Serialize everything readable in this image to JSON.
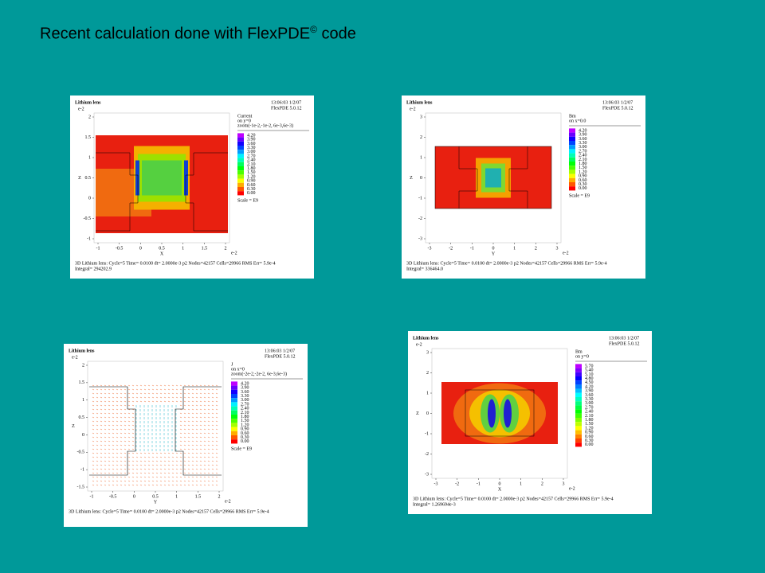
{
  "title": {
    "text": "Recent calculation done with FlexPDE",
    "sup": "©",
    "tail": " code"
  },
  "panels": [
    {
      "header": "Lithium lens",
      "exp": "e-2",
      "date": "13:06:03 1/2/07",
      "version": "FlexPDE 5.0.12",
      "quantity": "Current",
      "on": "on y=0",
      "zoom": "zoom(-1e-2,-1e-2, 6e-3,6e-3)",
      "legend": [
        "4.20",
        "3.90",
        "3.60",
        "3.30",
        "3.00",
        "2.70",
        "2.40",
        "2.10",
        "1.80",
        "1.50",
        "1.20",
        "0.90",
        "0.60",
        "0.30",
        "0.00"
      ],
      "scale": "Scale = E9",
      "xlabel": "X",
      "ylabel": "Z",
      "xticks": [
        "-1",
        "-0.5",
        "0",
        "0.5",
        "1",
        "1.5",
        "2"
      ],
      "yticks": [
        "2",
        "1.5",
        "1",
        "0.5",
        "0",
        "-0.5",
        "-1"
      ],
      "xexp": "e-2",
      "footer": "3D Lithium lens:  Cycle=5  Time= 0.0100  dt= 2.0000e-3  p2  Nodes=42157 Cells=29966 RMS Err= 5.9e-4",
      "integral": "Integral=  294202.9"
    },
    {
      "header": "Lithium lens",
      "exp": "e-2",
      "date": "13:06:03 1/2/07",
      "version": "FlexPDE 5.0.12",
      "quantity": "Bm",
      "on": "on x=0.0",
      "legend": [
        "4.20",
        "3.90",
        "3.60",
        "3.30",
        "3.00",
        "2.70",
        "2.40",
        "2.10",
        "1.80",
        "1.50",
        "1.20",
        "0.90",
        "0.60",
        "0.30",
        "0.00"
      ],
      "scale": "Scale = E9",
      "xlabel": "Y",
      "ylabel": "Z",
      "xticks": [
        "-3",
        "-2",
        "-1",
        "0",
        "1",
        "2",
        "3"
      ],
      "yticks": [
        "3",
        "2",
        "1",
        "0",
        "-1",
        "-2",
        "-3"
      ],
      "xexp": "e-2",
      "footer": "3D Lithium lens:  Cycle=5  Time= 0.0100  dt= 2.0000e-3  p2  Nodes=42157 Cells=29966 RMS Err= 5.9e-4",
      "integral": "Integral=  336464.0"
    },
    {
      "header": "Lithium lens",
      "exp": "e-2",
      "date": "13:06:03 1/2/07",
      "version": "FlexPDE 5.0.12",
      "quantity": "J",
      "on": "on x=0",
      "zoom": "zoom(-2e-2,-2e-2, 6e-3,6e-3)",
      "legend": [
        "4.20",
        "3.90",
        "3.60",
        "3.30",
        "3.00",
        "2.70",
        "2.40",
        "2.10",
        "1.80",
        "1.50",
        "1.20",
        "0.90",
        "0.60",
        "0.30",
        "0.00"
      ],
      "scale": "Scale = E9",
      "xlabel": "Y",
      "ylabel": "Z",
      "xticks": [
        "-1",
        "-0.5",
        "0",
        "0.5",
        "1",
        "1.5",
        "2"
      ],
      "yticks": [
        "2",
        "1.5",
        "1",
        "0.5",
        "0",
        "-0.5",
        "-1",
        "-1.5"
      ],
      "xexp": "e-2",
      "footer": "3D Lithium lens:  Cycle=5  Time= 0.0100  dt= 2.0000e-3  p2  Nodes=42157 Cells=29966 RMS Err= 5.9e-4"
    },
    {
      "header": "Lithium lens",
      "exp": "e-2",
      "date": "13:06:03 1/2/07",
      "version": "FlexPDE 5.0.12",
      "quantity": "Bm",
      "on": "on y=0",
      "legend": [
        "5.70",
        "5.40",
        "5.10",
        "4.80",
        "4.50",
        "4.20",
        "3.90",
        "3.60",
        "3.30",
        "3.00",
        "2.70",
        "2.40",
        "2.10",
        "1.80",
        "1.50",
        "1.20",
        "0.90",
        "0.60",
        "0.30",
        "0.00"
      ],
      "xlabel": "X",
      "ylabel": "Z",
      "xticks": [
        "-3",
        "-2",
        "-1",
        "0",
        "1",
        "2",
        "3"
      ],
      "yticks": [
        "3",
        "2",
        "1",
        "0",
        "-1",
        "-2",
        "-3"
      ],
      "xexp": "e-2",
      "footer": "3D Lithium lens:  Cycle=5  Time= 0.0100  dt= 2.0000e-3  p2  Nodes=42157 Cells=29966 RMS Err= 5.9e-4",
      "integral": "Integral=  1.269694e-3"
    }
  ]
}
